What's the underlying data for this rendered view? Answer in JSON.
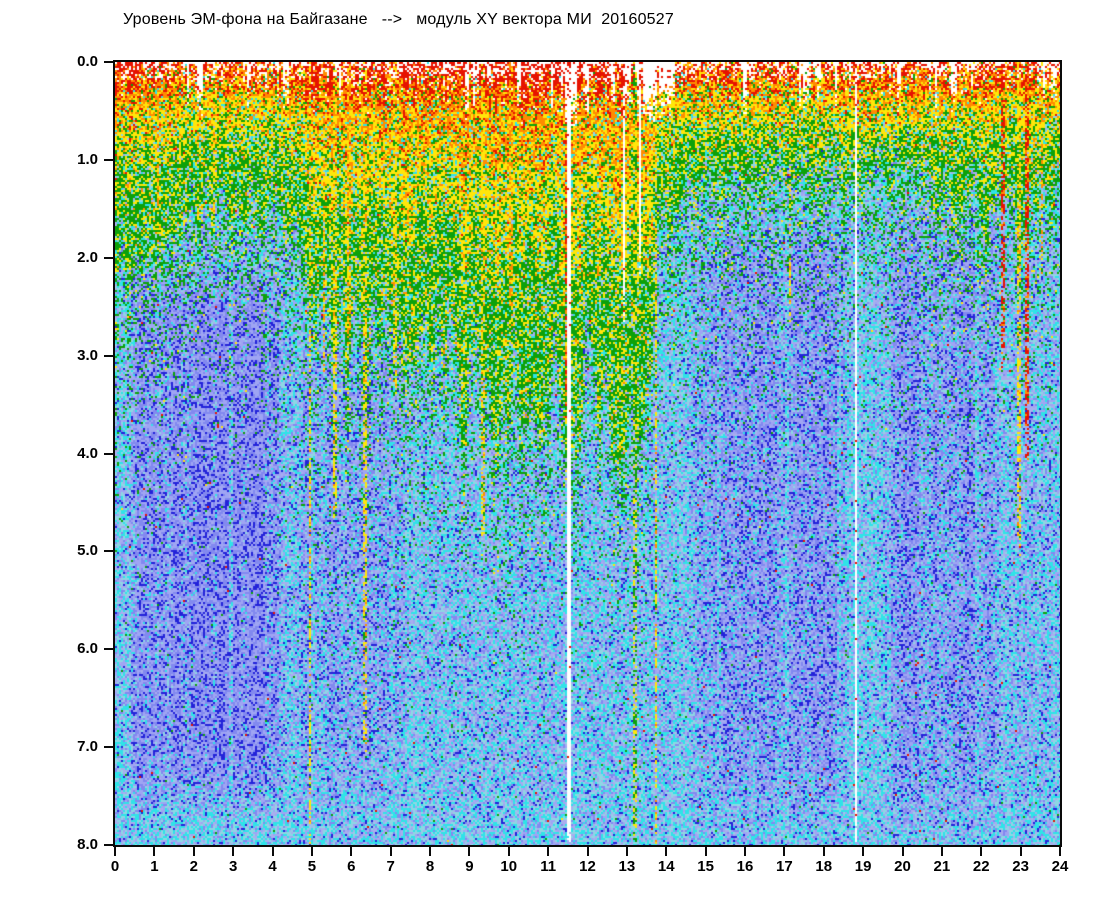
{
  "title": "Уровень ЭМ-фона на Байгазане   -->   модуль XY вектора МИ  20160527",
  "chart_data": {
    "type": "heatmap",
    "title": "Уровень ЭМ-фона на Байгазане --> модуль XY вектора МИ 20160527",
    "station": "Байгазан",
    "quantity": "модуль XY вектора МИ",
    "date": "20160527",
    "grid": false,
    "legend": "none",
    "x_axis": {
      "label": "",
      "min": 0,
      "max": 24,
      "tick_labels": [
        "0",
        "1",
        "2",
        "3",
        "4",
        "5",
        "6",
        "7",
        "8",
        "9",
        "10",
        "11",
        "12",
        "13",
        "14",
        "15",
        "16",
        "17",
        "18",
        "19",
        "20",
        "21",
        "22",
        "23",
        "24"
      ]
    },
    "y_axis": {
      "label": "",
      "min": 0,
      "max": 8,
      "inverted": true,
      "tick_labels": [
        "0.0",
        "1.0",
        "2.0",
        "3.0",
        "4.0",
        "5.0",
        "6.0",
        "7.0",
        "8.0"
      ]
    },
    "palette": {
      "red": "#e61300",
      "orange": "#ff8c00",
      "yellow": "#ffe60a",
      "green": "#0da10a",
      "cyan_bright": "#2fe3e8",
      "cyan_muted": "#8ed6e4",
      "pale_blue": "#a9aeee",
      "periwinkle": "#8289ef",
      "periwinkle_light": "#9fa5f3",
      "blue_dark": "#2323d9",
      "white": "#ffffff",
      "axis": "#0a0a0a"
    },
    "warm_depth_profile": [
      [
        0,
        2.0
      ],
      [
        0.7,
        1.7
      ],
      [
        1.5,
        1.45
      ],
      [
        2.5,
        1.4
      ],
      [
        3.5,
        1.5
      ],
      [
        4.2,
        1.3
      ],
      [
        4.7,
        2.2
      ],
      [
        5.2,
        2.6
      ],
      [
        6,
        2.7
      ],
      [
        7,
        2.6
      ],
      [
        8,
        2.9
      ],
      [
        9,
        3.3
      ],
      [
        10,
        3.3
      ],
      [
        10.8,
        3.1
      ],
      [
        11.4,
        3.3
      ],
      [
        11.7,
        3.2
      ],
      [
        12.5,
        3.4
      ],
      [
        13.3,
        3.2
      ],
      [
        13.7,
        2.2
      ],
      [
        14.2,
        1.3
      ],
      [
        15,
        1.15
      ],
      [
        16,
        1.1
      ],
      [
        17,
        1.05
      ],
      [
        18,
        1.1
      ],
      [
        18.7,
        1.2
      ],
      [
        19.2,
        1.0
      ],
      [
        20,
        1.05
      ],
      [
        21,
        1.15
      ],
      [
        21.8,
        1.3
      ],
      [
        22.5,
        1.5
      ],
      [
        23.2,
        1.5
      ],
      [
        23.7,
        1.3
      ],
      [
        24,
        1.3
      ]
    ],
    "blue_patches": [
      [
        0.25,
        4.45,
        1.9,
        7.6,
        0.82
      ],
      [
        4.45,
        7.6,
        2.6,
        7.8,
        0.45
      ],
      [
        7.6,
        14.4,
        3.5,
        8.0,
        0.18
      ],
      [
        14.55,
        18.7,
        1.4,
        8.0,
        0.62
      ],
      [
        18.95,
        19.35,
        1.6,
        8.0,
        0.3
      ],
      [
        19.35,
        22.6,
        1.4,
        8.0,
        0.58
      ],
      [
        22.6,
        24.0,
        1.8,
        8.0,
        0.3
      ]
    ],
    "data_gaps": [
      {
        "t": 11.55,
        "width": 0.1,
        "depth": 8.0
      },
      {
        "t": 18.82,
        "width": 0.07,
        "depth": 8.0
      },
      {
        "t": 12.95,
        "width": 0.05,
        "depth": 2.6
      },
      {
        "t": 13.32,
        "width": 0.05,
        "depth": 2.0
      }
    ],
    "top_notches": [
      {
        "t": 2.15,
        "d": 0.35
      },
      {
        "t": 4.35,
        "d": 0.3
      },
      {
        "t": 8.95,
        "d": 0.35
      },
      {
        "t": 10.25,
        "d": 0.3
      },
      {
        "t": 11.57,
        "d": 0.5,
        "w": 0.3
      },
      {
        "t": 12.0,
        "d": 0.4
      },
      {
        "t": 12.65,
        "d": 0.35
      },
      {
        "t": 13.05,
        "d": 0.3
      },
      {
        "t": 13.6,
        "d": 0.45,
        "w": 0.35
      },
      {
        "t": 13.95,
        "d": 0.4,
        "w": 0.3
      },
      {
        "t": 14.15,
        "d": 0.3
      },
      {
        "t": 16.0,
        "d": 0.45
      },
      {
        "t": 17.55,
        "d": 0.3
      },
      {
        "t": 19.9,
        "d": 0.35
      },
      {
        "t": 21.3,
        "d": 0.3
      },
      {
        "t": 23.85,
        "d": 0.25
      }
    ],
    "streaks": [
      {
        "t": 1.1,
        "d": 1.6,
        "c": "orange"
      },
      {
        "t": 2.55,
        "d": 1.5,
        "c": "yellow"
      },
      {
        "t": 4.95,
        "d": 8.0,
        "c": "yellow"
      },
      {
        "t": 5.3,
        "d": 3.2,
        "c": "orange"
      },
      {
        "t": 5.6,
        "d": 4.6,
        "c": "yellow"
      },
      {
        "t": 5.95,
        "d": 2.8,
        "c": "orange"
      },
      {
        "t": 6.35,
        "d": 7.0,
        "c": "yellow"
      },
      {
        "t": 7.1,
        "d": 3.2,
        "c": "yellow"
      },
      {
        "t": 9.35,
        "d": 4.9,
        "c": "yellow"
      },
      {
        "t": 10.05,
        "d": 2.6,
        "c": "orange"
      },
      {
        "t": 11.47,
        "d": 3.5,
        "c": "red"
      },
      {
        "t": 13.2,
        "d": 8.0,
        "c": "green"
      },
      {
        "t": 13.75,
        "d": 8.0,
        "c": "yellow"
      },
      {
        "t": 17.15,
        "d": 2.6,
        "c": "yellow"
      },
      {
        "t": 22.55,
        "d": 3.0,
        "c": "red"
      },
      {
        "t": 22.95,
        "d": 5.0,
        "c": "yellow"
      },
      {
        "t": 23.15,
        "d": 4.0,
        "c": "red"
      },
      {
        "t": 23.55,
        "d": 2.0,
        "c": "orange"
      }
    ],
    "light_columns": [
      2.95,
      5.05,
      7.05,
      15.35,
      17.05,
      18.4,
      19.65,
      21.9,
      23.45
    ]
  }
}
